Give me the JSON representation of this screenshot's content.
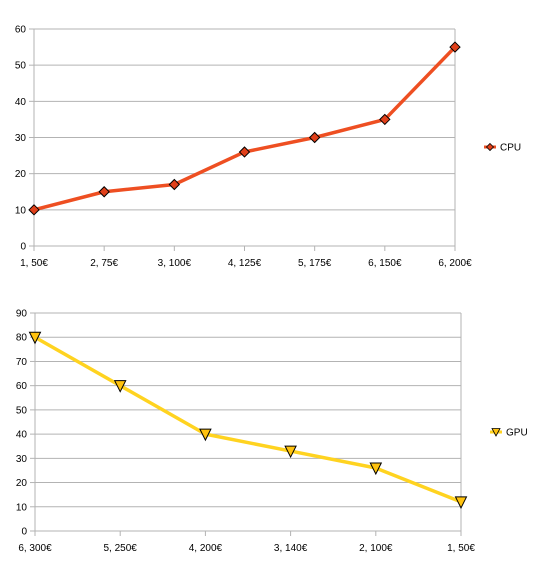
{
  "chart_data": [
    {
      "type": "line",
      "categories": [
        "1, 50€",
        "2, 75€",
        "3, 100€",
        "4, 125€",
        "5, 175€",
        "6, 150€",
        "6, 200€"
      ],
      "series": [
        {
          "name": "CPU",
          "values": [
            10,
            15,
            17,
            26,
            30,
            35,
            55
          ],
          "color": "#ee4f22",
          "marker_color": "#e0401a",
          "marker": "diamond"
        }
      ],
      "ylim": [
        0,
        60
      ],
      "yticks": [
        0,
        10,
        20,
        30,
        40,
        50,
        60
      ],
      "grid": true,
      "legend": "right"
    },
    {
      "type": "line",
      "categories": [
        "6, 300€",
        "5, 250€",
        "4, 200€",
        "3, 140€",
        "2, 100€",
        "1, 50€"
      ],
      "series": [
        {
          "name": "GPU",
          "values": [
            80,
            60,
            40,
            33,
            26,
            12
          ],
          "color": "#ffd320",
          "marker_color": "#ffc20e",
          "marker": "triangle-down"
        }
      ],
      "ylim": [
        0,
        90
      ],
      "yticks": [
        0,
        10,
        20,
        30,
        40,
        50,
        60,
        70,
        80,
        90
      ],
      "grid": true,
      "legend": "right"
    }
  ]
}
